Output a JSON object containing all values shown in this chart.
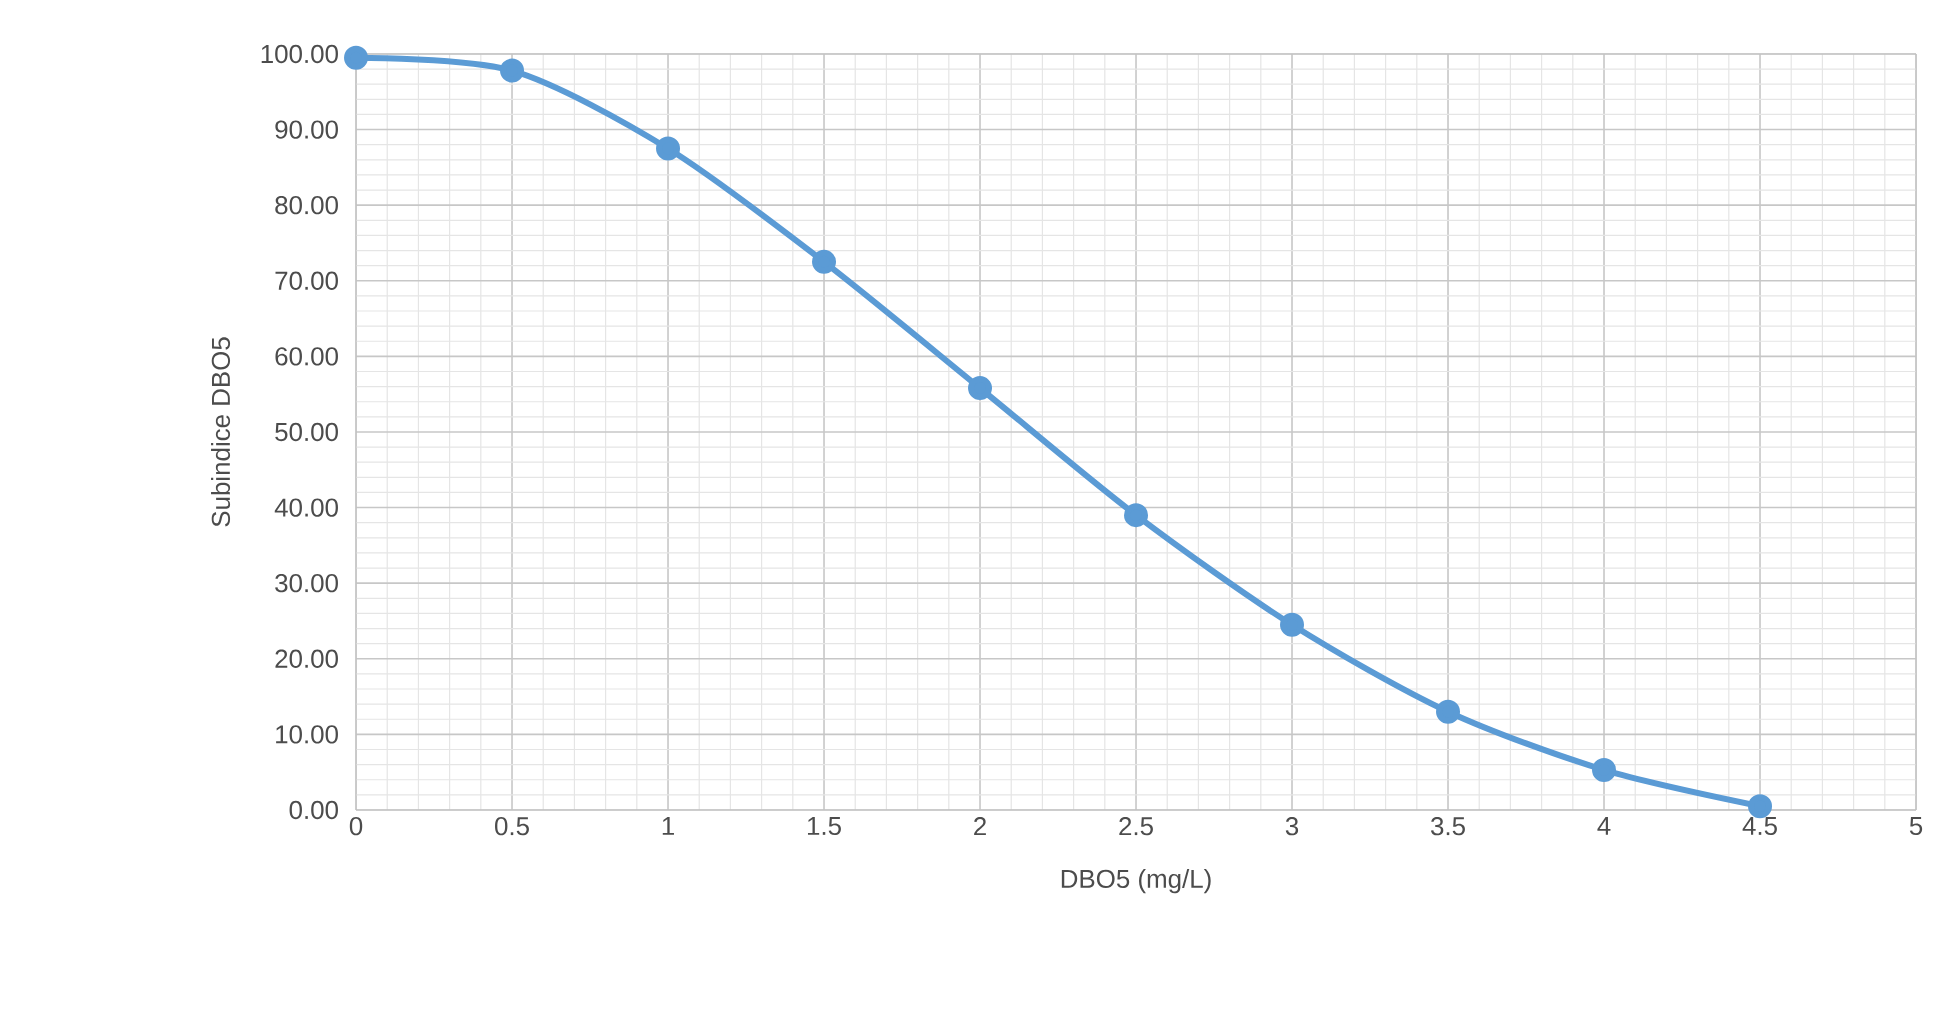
{
  "chart_data": {
    "type": "line",
    "xlabel": "DBO5 (mg/L)",
    "ylabel": "Subindice  DBO5",
    "x": [
      0,
      0.5,
      1,
      1.5,
      2,
      2.5,
      3,
      3.5,
      4,
      4.5
    ],
    "series": [
      {
        "color": "#5b9bd5",
        "values": [
          99.5,
          97.8,
          87.5,
          72.5,
          55.8,
          39.0,
          24.5,
          13.0,
          5.3,
          0.5
        ]
      }
    ],
    "xlim": [
      0,
      5
    ],
    "xticks": [
      0,
      0.5,
      1,
      1.5,
      2,
      2.5,
      3,
      3.5,
      4,
      4.5,
      5
    ],
    "ylim": [
      0,
      100
    ],
    "yticks": [
      {
        "value": 0,
        "label": "0.00"
      },
      {
        "value": 10,
        "label": "10.00"
      },
      {
        "value": 20,
        "label": "20.00"
      },
      {
        "value": 30,
        "label": "30.00"
      },
      {
        "value": 40,
        "label": "40.00"
      },
      {
        "value": 50,
        "label": "50.00"
      },
      {
        "value": 60,
        "label": "60.00"
      },
      {
        "value": 70,
        "label": "70.00"
      },
      {
        "value": 80,
        "label": "80.00"
      },
      {
        "value": 90,
        "label": "90.00"
      },
      {
        "value": 100,
        "label": "100.00"
      }
    ],
    "grid": true,
    "marker": "circle",
    "line_style": "solid"
  }
}
